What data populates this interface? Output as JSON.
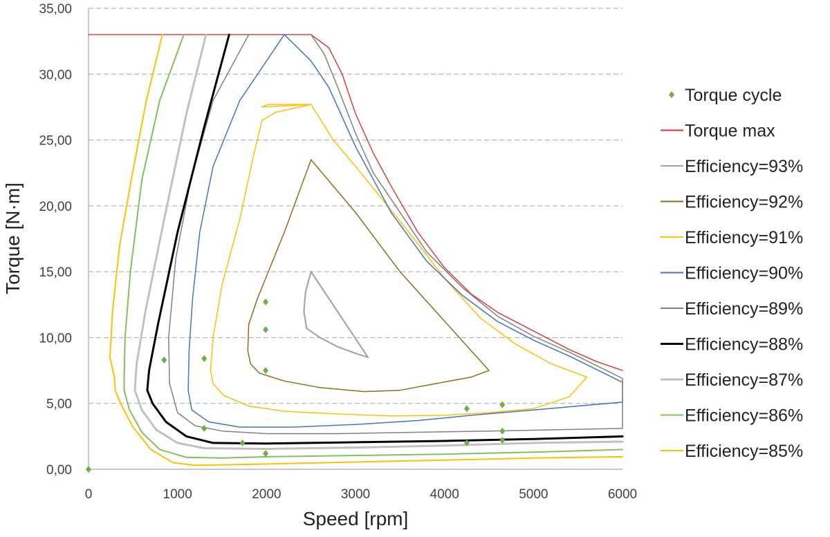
{
  "chart_data": {
    "type": "line",
    "title": "",
    "xlabel": "Speed [rpm]",
    "ylabel": "Torque [N·m]",
    "xlim": [
      0,
      6000
    ],
    "ylim": [
      0,
      35
    ],
    "x_ticks": [
      0,
      1000,
      2000,
      3000,
      4000,
      5000,
      6000
    ],
    "x_tick_labels": [
      "0",
      "1000",
      "2000",
      "3000",
      "4000",
      "5000",
      "6000"
    ],
    "y_ticks": [
      0,
      5,
      10,
      15,
      20,
      25,
      30,
      35
    ],
    "y_tick_labels": [
      "0,00",
      "5,00",
      "10,00",
      "15,00",
      "20,00",
      "25,00",
      "30,00",
      "35,00"
    ],
    "grid": "horizontal dashed",
    "legend_position": "right",
    "series": [
      {
        "name": "Torque cycle",
        "kind": "scatter",
        "color": "#70ad47",
        "marker": "diamond",
        "points": [
          [
            0,
            0
          ],
          [
            850,
            8.3
          ],
          [
            1300,
            8.4
          ],
          [
            1300,
            3.1
          ],
          [
            1730,
            2.0
          ],
          [
            1990,
            1.2
          ],
          [
            1990,
            12.7
          ],
          [
            1990,
            10.6
          ],
          [
            1990,
            7.5
          ],
          [
            4250,
            4.6
          ],
          [
            4250,
            2.0
          ],
          [
            4650,
            4.9
          ],
          [
            4650,
            2.9
          ],
          [
            4650,
            2.2
          ]
        ]
      },
      {
        "name": "Torque max",
        "kind": "line",
        "color": "#e03030",
        "width": 1.4,
        "points": [
          [
            0,
            33
          ],
          [
            2500,
            33
          ],
          [
            2700,
            32
          ],
          [
            2850,
            30
          ],
          [
            3000,
            27
          ],
          [
            3200,
            24
          ],
          [
            3400,
            21.5
          ],
          [
            3700,
            18
          ],
          [
            4000,
            15.3
          ],
          [
            4300,
            13.3
          ],
          [
            4600,
            11.9
          ],
          [
            5000,
            10.5
          ],
          [
            5400,
            9.1
          ],
          [
            5700,
            8.2
          ],
          [
            6000,
            7.5
          ]
        ]
      },
      {
        "name": "Efficiency=93%",
        "kind": "line",
        "color": "#a6a6a6",
        "width": 2.2,
        "points": [
          [
            2500,
            15
          ],
          [
            2440,
            13.5
          ],
          [
            2420,
            12
          ],
          [
            2450,
            10.7
          ],
          [
            2600,
            10
          ],
          [
            2800,
            9.3
          ],
          [
            3000,
            8.8
          ],
          [
            3140,
            8.5
          ],
          [
            2500,
            15
          ]
        ]
      },
      {
        "name": "Efficiency=92%",
        "kind": "line",
        "color": "#8b6d1f",
        "width": 1.5,
        "points": [
          [
            2500,
            23.5
          ],
          [
            2200,
            18
          ],
          [
            1900,
            13
          ],
          [
            1800,
            11
          ],
          [
            1790,
            9
          ],
          [
            1820,
            8
          ],
          [
            1920,
            7.3
          ],
          [
            2200,
            6.7
          ],
          [
            2600,
            6.2
          ],
          [
            3100,
            5.9
          ],
          [
            3500,
            6.0
          ],
          [
            3900,
            6.5
          ],
          [
            4300,
            7.0
          ],
          [
            4500,
            7.5
          ],
          [
            4100,
            10.5
          ],
          [
            3500,
            15
          ],
          [
            3000,
            19.5
          ],
          [
            2500,
            23.5
          ]
        ]
      },
      {
        "name": "Efficiency=91%",
        "kind": "line",
        "color": "#ffc000",
        "width": 1.5,
        "points": [
          [
            2500,
            27.7
          ],
          [
            1950,
            27.5
          ],
          [
            1980,
            27.6
          ],
          [
            2020,
            27.7
          ],
          [
            2500,
            27.7
          ],
          [
            2750,
            25
          ],
          [
            3000,
            23
          ],
          [
            3300,
            20.5
          ],
          [
            3600,
            18
          ],
          [
            4000,
            14.5
          ],
          [
            4400,
            11.5
          ],
          [
            4800,
            9.5
          ],
          [
            5200,
            8
          ],
          [
            5600,
            7
          ],
          [
            5400,
            5.5
          ],
          [
            5000,
            4.6
          ],
          [
            4500,
            4.3
          ],
          [
            4000,
            4.1
          ],
          [
            3400,
            4.05
          ],
          [
            2800,
            4.2
          ],
          [
            2200,
            4.4
          ],
          [
            1800,
            4.8
          ],
          [
            1520,
            5.6
          ],
          [
            1400,
            6.5
          ],
          [
            1370,
            7.5
          ],
          [
            1400,
            10
          ],
          [
            1500,
            14
          ],
          [
            1700,
            19
          ],
          [
            1860,
            24
          ],
          [
            1950,
            26.5
          ],
          [
            2100,
            27.1
          ],
          [
            2500,
            27.7
          ]
        ]
      },
      {
        "name": "Efficiency=90%",
        "kind": "line",
        "color": "#4472c4",
        "width": 1.5,
        "points": [
          [
            2200,
            33
          ],
          [
            1700,
            28
          ],
          [
            1400,
            23
          ],
          [
            1250,
            18
          ],
          [
            1170,
            13
          ],
          [
            1130,
            9
          ],
          [
            1120,
            6
          ],
          [
            1160,
            4.5
          ],
          [
            1350,
            3.6
          ],
          [
            1700,
            3.2
          ],
          [
            2300,
            3.2
          ],
          [
            3000,
            3.4
          ],
          [
            3700,
            3.7
          ],
          [
            4300,
            4.1
          ],
          [
            5000,
            4.5
          ],
          [
            6000,
            5.1
          ],
          [
            6000,
            6.6
          ],
          [
            5400,
            8.6
          ],
          [
            5000,
            9.8
          ],
          [
            4600,
            11.2
          ],
          [
            4200,
            13.2
          ],
          [
            3800,
            15.8
          ],
          [
            3400,
            19.5
          ],
          [
            3000,
            24.5
          ],
          [
            2700,
            29
          ],
          [
            2500,
            31
          ],
          [
            2200,
            33
          ]
        ]
      },
      {
        "name": "Efficiency=89%",
        "kind": "line",
        "color": "#808080",
        "width": 1.5,
        "points": [
          [
            1800,
            33
          ],
          [
            1400,
            28
          ],
          [
            1150,
            22
          ],
          [
            980,
            16
          ],
          [
            900,
            10
          ],
          [
            910,
            6.5
          ],
          [
            1000,
            4.3
          ],
          [
            1200,
            3.3
          ],
          [
            1500,
            2.9
          ],
          [
            2000,
            2.7
          ],
          [
            2800,
            2.7
          ],
          [
            3600,
            2.8
          ],
          [
            4500,
            2.9
          ],
          [
            6000,
            3.1
          ],
          [
            6000,
            6.9
          ],
          [
            5400,
            8.9
          ],
          [
            5000,
            10.1
          ],
          [
            4600,
            11.6
          ],
          [
            4200,
            13.8
          ],
          [
            3800,
            16.5
          ],
          [
            3400,
            20.5
          ],
          [
            3200,
            22.5
          ],
          [
            3000,
            25.5
          ],
          [
            2800,
            29
          ],
          [
            2650,
            31.5
          ],
          [
            2500,
            33
          ]
        ]
      },
      {
        "name": "Efficiency=88%",
        "kind": "line",
        "color": "#000000",
        "width": 3.0,
        "points": [
          [
            1580,
            33
          ],
          [
            1300,
            26
          ],
          [
            1000,
            18
          ],
          [
            780,
            11
          ],
          [
            680,
            7.5
          ],
          [
            660,
            6
          ],
          [
            720,
            5
          ],
          [
            870,
            3.6
          ],
          [
            1100,
            2.5
          ],
          [
            1400,
            2.0
          ],
          [
            2000,
            1.95
          ],
          [
            3000,
            2.05
          ],
          [
            4000,
            2.15
          ],
          [
            5000,
            2.3
          ],
          [
            6000,
            2.5
          ]
        ]
      },
      {
        "name": "Efficiency=87%",
        "kind": "line",
        "color": "#c0c0c0",
        "width": 3.0,
        "points": [
          [
            1320,
            33
          ],
          [
            1100,
            27
          ],
          [
            850,
            19
          ],
          [
            640,
            12
          ],
          [
            540,
            8
          ],
          [
            520,
            6
          ],
          [
            600,
            4.5
          ],
          [
            760,
            3.0
          ],
          [
            1000,
            2.0
          ],
          [
            1300,
            1.6
          ],
          [
            2000,
            1.55
          ],
          [
            3000,
            1.65
          ],
          [
            4000,
            1.8
          ],
          [
            5000,
            2.0
          ],
          [
            6000,
            2.1
          ]
        ]
      },
      {
        "name": "Efficiency=86%",
        "kind": "line",
        "color": "#7fc15f",
        "width": 2.0,
        "points": [
          [
            1070,
            33
          ],
          [
            800,
            28
          ],
          [
            600,
            22
          ],
          [
            470,
            15
          ],
          [
            410,
            10
          ],
          [
            400,
            7
          ],
          [
            400,
            6
          ],
          [
            460,
            4.5
          ],
          [
            600,
            2.8
          ],
          [
            800,
            1.5
          ],
          [
            1100,
            0.9
          ],
          [
            1500,
            0.85
          ],
          [
            2000,
            0.95
          ],
          [
            3000,
            1.05
          ],
          [
            4000,
            1.15
          ],
          [
            5000,
            1.3
          ],
          [
            6000,
            1.5
          ]
        ]
      },
      {
        "name": "Efficiency=85%",
        "kind": "line",
        "color": "#ffc000",
        "width": 2.0,
        "points": [
          [
            830,
            33
          ],
          [
            650,
            28
          ],
          [
            480,
            22
          ],
          [
            350,
            17
          ],
          [
            270,
            12
          ],
          [
            240,
            8.5
          ],
          [
            290,
            7
          ],
          [
            300,
            6
          ],
          [
            360,
            5
          ],
          [
            500,
            3.2
          ],
          [
            700,
            1.5
          ],
          [
            950,
            0.5
          ],
          [
            1200,
            0.3
          ],
          [
            2000,
            0.4
          ],
          [
            3000,
            0.55
          ],
          [
            4000,
            0.7
          ],
          [
            5000,
            0.85
          ],
          [
            6000,
            0.95
          ]
        ]
      }
    ]
  }
}
